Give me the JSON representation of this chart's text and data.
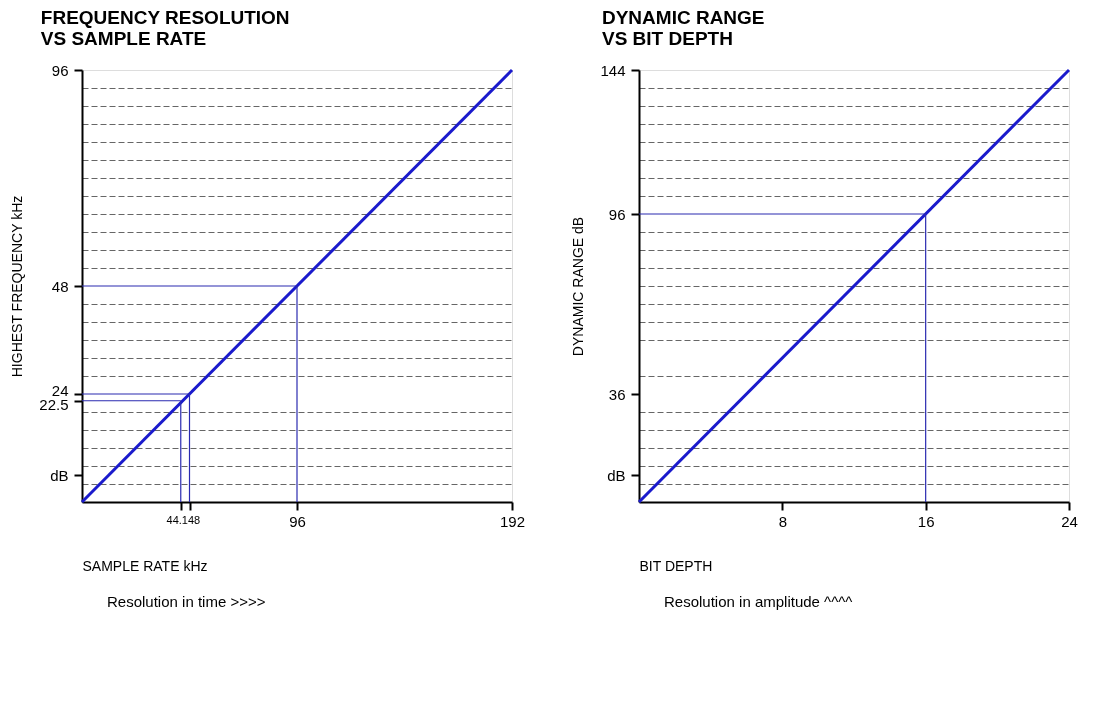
{
  "chart_data": [
    {
      "type": "line",
      "title": "FREQUENCY RESOLUTION\nVS SAMPLE RATE",
      "xlabel": "SAMPLE RATE kHz",
      "ylabel": "HIGHEST FREQUENCY kHz",
      "series": [
        {
          "color": "#1a1acc",
          "x": [
            0,
            192
          ],
          "values": [
            0,
            96
          ]
        }
      ],
      "xlim": [
        0,
        192
      ],
      "ylim": [
        0,
        96
      ],
      "xticks": [
        44.1,
        48,
        96,
        192
      ],
      "yticks": [
        {
          "value": 6,
          "label": "dB"
        },
        22.5,
        24,
        48,
        96,
        {
          "value": 4,
          "label": null
        },
        {
          "value": 8,
          "label": null
        },
        {
          "value": 12,
          "label": null
        },
        {
          "value": 16,
          "label": null
        },
        {
          "value": 20,
          "label": null
        },
        {
          "value": 28,
          "label": null
        },
        {
          "value": 32,
          "label": null
        },
        {
          "value": 36,
          "label": null
        },
        {
          "value": 40,
          "label": null
        },
        {
          "value": 44,
          "label": null
        },
        {
          "value": 52,
          "label": null
        },
        {
          "value": 56,
          "label": null
        },
        {
          "value": 60,
          "label": null
        },
        {
          "value": 64,
          "label": null
        },
        {
          "value": 68,
          "label": null
        },
        {
          "value": 72,
          "label": null
        },
        {
          "value": 76,
          "label": null
        },
        {
          "value": 80,
          "label": null
        },
        {
          "value": 84,
          "label": null
        },
        {
          "value": 88,
          "label": null
        },
        {
          "value": 92,
          "label": null
        }
      ],
      "grid": "y",
      "ref_lines": [
        {
          "axis": "y",
          "value": 48,
          "color": "#2a2ab0"
        },
        {
          "axis": "x",
          "value": 96,
          "color": "#2a2ab0"
        },
        {
          "axis": "y",
          "value": 24,
          "color": "#2a2ab0"
        },
        {
          "axis": "x",
          "value": 48,
          "color": "#2a2ab0"
        },
        {
          "axis": "y",
          "value": 22.5,
          "color": "#2a2ab0"
        },
        {
          "axis": "x",
          "value": 44.1,
          "color": "#2a2ab0"
        }
      ],
      "annotations": [
        "Resolution in time >>>>"
      ]
    },
    {
      "type": "line",
      "title": "DYNAMIC RANGE\nVS BIT DEPTH",
      "xlabel": "BIT DEPTH",
      "ylabel": "DYNAMIC RANGE dB",
      "series": [
        {
          "color": "#1a1acc",
          "x": [
            0,
            24
          ],
          "values": [
            0,
            144
          ]
        }
      ],
      "xlim": [
        0,
        24
      ],
      "ylim": [
        0,
        144
      ],
      "xticks": [
        8,
        16,
        24
      ],
      "yticks": [
        {
          "value": 9,
          "label": "dB"
        },
        36,
        96,
        144,
        {
          "value": 6,
          "label": null
        },
        {
          "value": 12,
          "label": null
        },
        {
          "value": 18,
          "label": null
        },
        {
          "value": 24,
          "label": null
        },
        {
          "value": 30,
          "label": null
        },
        {
          "value": 36,
          "label": null
        },
        {
          "value": 42,
          "label": null
        },
        {
          "value": 54,
          "label": null
        },
        {
          "value": 60,
          "label": null
        },
        {
          "value": 66,
          "label": null
        },
        {
          "value": 72,
          "label": null
        },
        {
          "value": 78,
          "label": null
        },
        {
          "value": 84,
          "label": null
        },
        {
          "value": 90,
          "label": null
        },
        {
          "value": 102,
          "label": null
        },
        {
          "value": 108,
          "label": null
        },
        {
          "value": 114,
          "label": null
        },
        {
          "value": 120,
          "label": null
        },
        {
          "value": 126,
          "label": null
        },
        {
          "value": 132,
          "label": null
        },
        {
          "value": 138,
          "label": null
        }
      ],
      "grid": "y",
      "ref_lines": [
        {
          "axis": "y",
          "value": 96,
          "color": "#2a2ab0"
        },
        {
          "axis": "x",
          "value": 16,
          "color": "#2a2ab0"
        }
      ],
      "annotations": [
        "Resolution in amplitude ^^^^"
      ]
    }
  ]
}
